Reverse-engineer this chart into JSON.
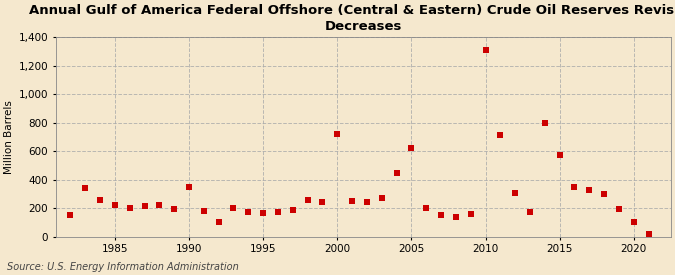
{
  "title_line1": "Annual Gulf of America Federal Offshore (Central & Eastern) Crude Oil Reserves Revision",
  "title_line2": "Decreases",
  "ylabel": "Million Barrels",
  "source": "Source: U.S. Energy Information Administration",
  "background_color": "#f5e8ce",
  "plot_background_color": "#f5e8ce",
  "marker_color": "#cc0000",
  "marker_size": 22,
  "years": [
    1982,
    1983,
    1984,
    1985,
    1986,
    1987,
    1988,
    1989,
    1990,
    1991,
    1992,
    1993,
    1994,
    1995,
    1996,
    1997,
    1998,
    1999,
    2000,
    2001,
    2002,
    2003,
    2004,
    2005,
    2006,
    2007,
    2008,
    2009,
    2010,
    2011,
    2012,
    2013,
    2014,
    2015,
    2016,
    2017,
    2018,
    2019,
    2020,
    2021
  ],
  "values": [
    150,
    340,
    260,
    220,
    200,
    215,
    220,
    195,
    350,
    180,
    100,
    200,
    175,
    165,
    175,
    185,
    260,
    245,
    720,
    250,
    245,
    270,
    450,
    620,
    200,
    150,
    140,
    160,
    1310,
    710,
    310,
    170,
    800,
    570,
    350,
    330,
    300,
    195,
    100,
    20
  ],
  "xlim": [
    1981,
    2022.5
  ],
  "ylim": [
    0,
    1400
  ],
  "yticks": [
    0,
    200,
    400,
    600,
    800,
    1000,
    1200,
    1400
  ],
  "ytick_labels": [
    "0",
    "200",
    "400",
    "600",
    "800",
    "1,000",
    "1,200",
    "1,400"
  ],
  "xticks": [
    1985,
    1990,
    1995,
    2000,
    2005,
    2010,
    2015,
    2020
  ],
  "grid_color": "#aaaaaa",
  "grid_style": "--",
  "grid_alpha": 0.8,
  "title_fontsize": 9.5,
  "label_fontsize": 7.5,
  "tick_fontsize": 7.5,
  "source_fontsize": 7
}
